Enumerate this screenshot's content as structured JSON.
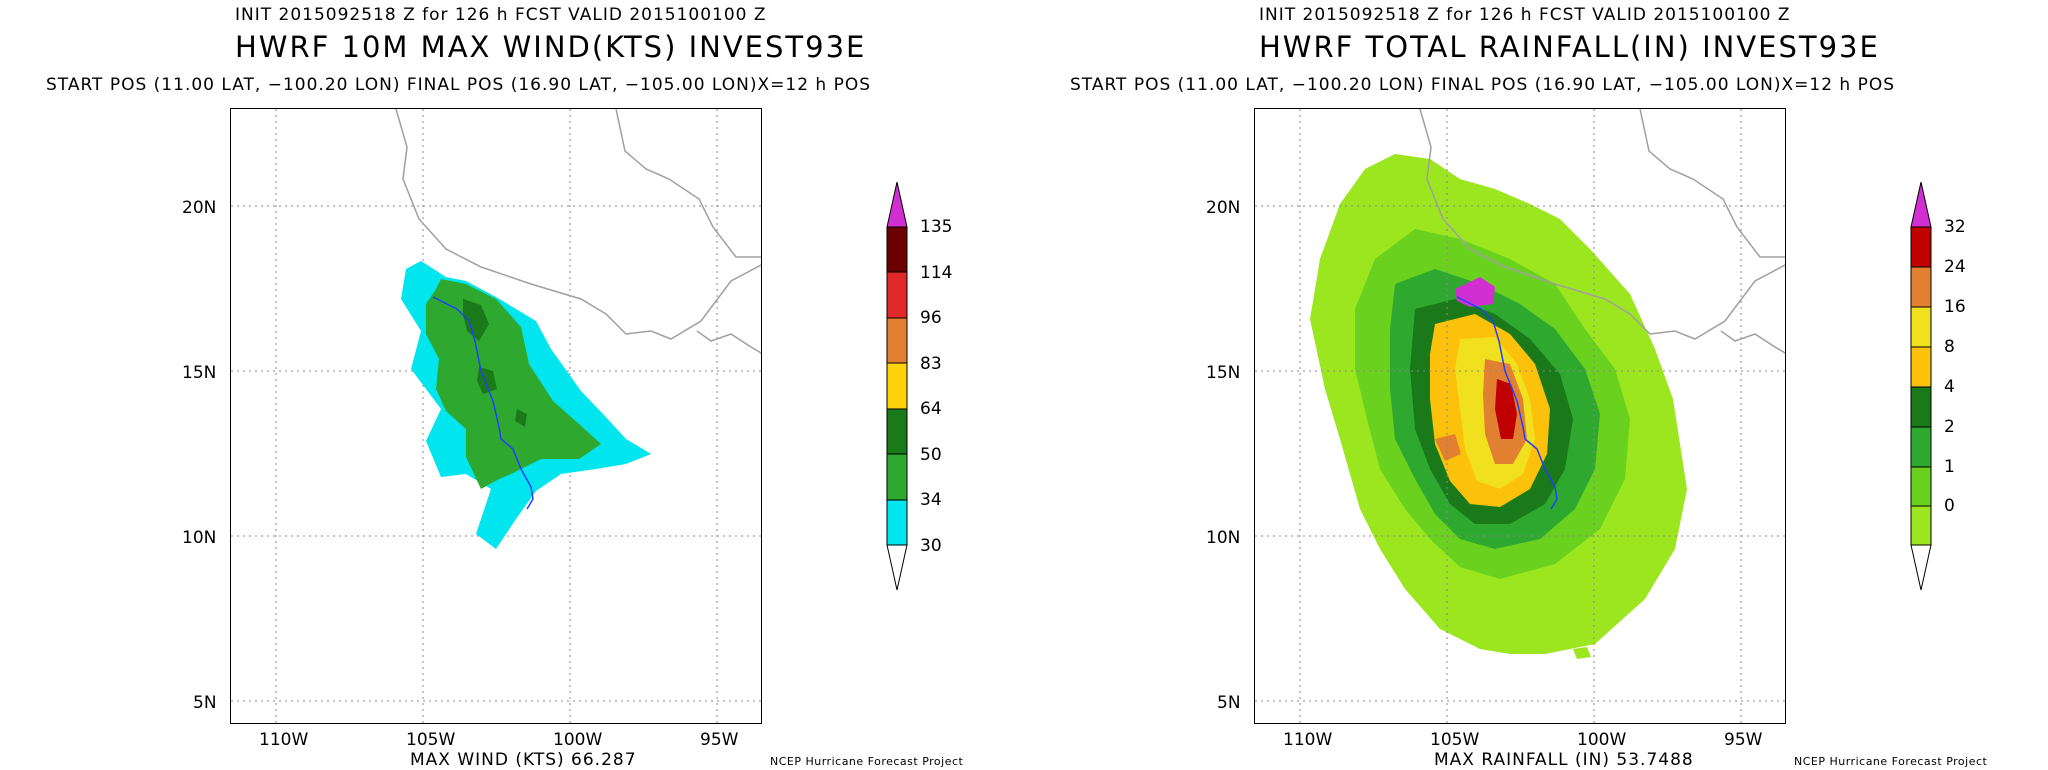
{
  "left": {
    "init": "INIT 2015092518 Z for 126 h FCST VALID 2015100100 Z",
    "title": "HWRF 10M MAX WIND(KTS) INVEST93E",
    "positions": "START POS (11.00 LAT, −100.20 LON)  FINAL POS (16.90 LAT, −105.00 LON)X=12 h POS",
    "lat_labels": [
      "20N",
      "15N",
      "10N",
      "5N"
    ],
    "lon_labels": [
      "110W",
      "105W",
      "100W",
      "95W"
    ],
    "max_label": "MAX WIND (KTS) 66.287",
    "credit": "NCEP Hurricane Forecast Project",
    "colorbar": {
      "ticks": [
        "135",
        "114",
        "96",
        "83",
        "64",
        "50",
        "34",
        "30"
      ],
      "colors": [
        "#6b0000",
        "#e02828",
        "#e08030",
        "#fcd20a",
        "#1a7a1a",
        "#2ea82e",
        "#00e5ee"
      ],
      "top_color": "#d22fd2"
    }
  },
  "right": {
    "init": "INIT 2015092518 Z for 126 h FCST VALID 2015100100 Z",
    "title": "HWRF TOTAL RAINFALL(IN) INVEST93E",
    "positions": "START POS (11.00 LAT, −100.20 LON)  FINAL POS (16.90 LAT, −105.00 LON)X=12 h POS",
    "lat_labels": [
      "20N",
      "15N",
      "10N",
      "5N"
    ],
    "lon_labels": [
      "110W",
      "105W",
      "100W",
      "95W"
    ],
    "max_label": "MAX RAINFALL (IN) 53.7488",
    "credit": "NCEP Hurricane Forecast Project",
    "colorbar": {
      "ticks": [
        "32",
        "24",
        "16",
        "8",
        "4",
        "2",
        "1",
        "0"
      ],
      "colors": [
        "#c00000",
        "#e08030",
        "#f0e01e",
        "#fcc10a",
        "#1a7a1a",
        "#2ea82e",
        "#6ad21e",
        "#9be61e"
      ],
      "top_color": "#d22fd2"
    }
  },
  "map": {
    "lon_range": [
      -112,
      -93
    ],
    "lat_range": [
      4,
      23
    ],
    "storm_track_color": "#2040ff",
    "coast_color": "#a0a0a0"
  }
}
